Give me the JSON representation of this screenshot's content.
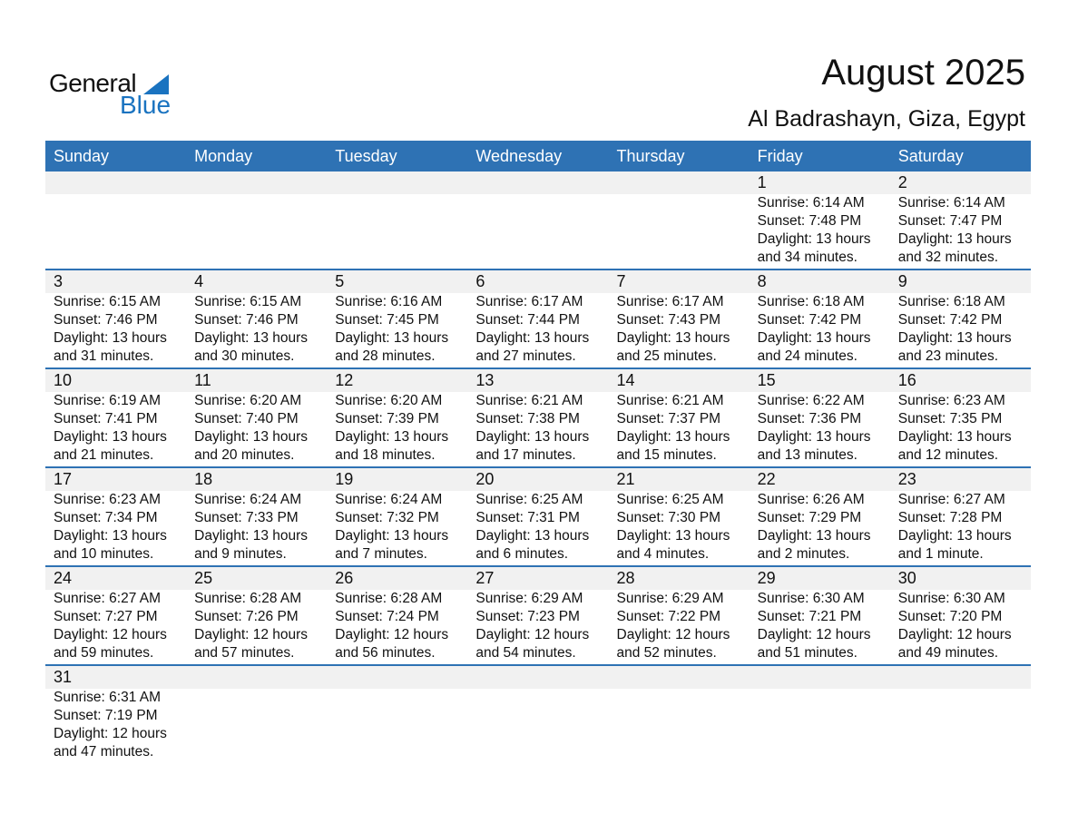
{
  "logo": {
    "line1": "General",
    "line2": "Blue"
  },
  "title": "August 2025",
  "location": "Al Badrashayn, Giza, Egypt",
  "colors": {
    "header": "#2e72b4",
    "band": "#f1f1f1",
    "logo_blue": "#1a73c0"
  },
  "weekdays": [
    "Sunday",
    "Monday",
    "Tuesday",
    "Wednesday",
    "Thursday",
    "Friday",
    "Saturday"
  ],
  "weeks": [
    [
      null,
      null,
      null,
      null,
      null,
      {
        "day": "1",
        "sunrise": "Sunrise: 6:14 AM",
        "sunset": "Sunset: 7:48 PM",
        "daylight": "Daylight: 13 hours",
        "minutes": "and 34 minutes."
      },
      {
        "day": "2",
        "sunrise": "Sunrise: 6:14 AM",
        "sunset": "Sunset: 7:47 PM",
        "daylight": "Daylight: 13 hours",
        "minutes": "and 32 minutes."
      }
    ],
    [
      {
        "day": "3",
        "sunrise": "Sunrise: 6:15 AM",
        "sunset": "Sunset: 7:46 PM",
        "daylight": "Daylight: 13 hours",
        "minutes": "and 31 minutes."
      },
      {
        "day": "4",
        "sunrise": "Sunrise: 6:15 AM",
        "sunset": "Sunset: 7:46 PM",
        "daylight": "Daylight: 13 hours",
        "minutes": "and 30 minutes."
      },
      {
        "day": "5",
        "sunrise": "Sunrise: 6:16 AM",
        "sunset": "Sunset: 7:45 PM",
        "daylight": "Daylight: 13 hours",
        "minutes": "and 28 minutes."
      },
      {
        "day": "6",
        "sunrise": "Sunrise: 6:17 AM",
        "sunset": "Sunset: 7:44 PM",
        "daylight": "Daylight: 13 hours",
        "minutes": "and 27 minutes."
      },
      {
        "day": "7",
        "sunrise": "Sunrise: 6:17 AM",
        "sunset": "Sunset: 7:43 PM",
        "daylight": "Daylight: 13 hours",
        "minutes": "and 25 minutes."
      },
      {
        "day": "8",
        "sunrise": "Sunrise: 6:18 AM",
        "sunset": "Sunset: 7:42 PM",
        "daylight": "Daylight: 13 hours",
        "minutes": "and 24 minutes."
      },
      {
        "day": "9",
        "sunrise": "Sunrise: 6:18 AM",
        "sunset": "Sunset: 7:42 PM",
        "daylight": "Daylight: 13 hours",
        "minutes": "and 23 minutes."
      }
    ],
    [
      {
        "day": "10",
        "sunrise": "Sunrise: 6:19 AM",
        "sunset": "Sunset: 7:41 PM",
        "daylight": "Daylight: 13 hours",
        "minutes": "and 21 minutes."
      },
      {
        "day": "11",
        "sunrise": "Sunrise: 6:20 AM",
        "sunset": "Sunset: 7:40 PM",
        "daylight": "Daylight: 13 hours",
        "minutes": "and 20 minutes."
      },
      {
        "day": "12",
        "sunrise": "Sunrise: 6:20 AM",
        "sunset": "Sunset: 7:39 PM",
        "daylight": "Daylight: 13 hours",
        "minutes": "and 18 minutes."
      },
      {
        "day": "13",
        "sunrise": "Sunrise: 6:21 AM",
        "sunset": "Sunset: 7:38 PM",
        "daylight": "Daylight: 13 hours",
        "minutes": "and 17 minutes."
      },
      {
        "day": "14",
        "sunrise": "Sunrise: 6:21 AM",
        "sunset": "Sunset: 7:37 PM",
        "daylight": "Daylight: 13 hours",
        "minutes": "and 15 minutes."
      },
      {
        "day": "15",
        "sunrise": "Sunrise: 6:22 AM",
        "sunset": "Sunset: 7:36 PM",
        "daylight": "Daylight: 13 hours",
        "minutes": "and 13 minutes."
      },
      {
        "day": "16",
        "sunrise": "Sunrise: 6:23 AM",
        "sunset": "Sunset: 7:35 PM",
        "daylight": "Daylight: 13 hours",
        "minutes": "and 12 minutes."
      }
    ],
    [
      {
        "day": "17",
        "sunrise": "Sunrise: 6:23 AM",
        "sunset": "Sunset: 7:34 PM",
        "daylight": "Daylight: 13 hours",
        "minutes": "and 10 minutes."
      },
      {
        "day": "18",
        "sunrise": "Sunrise: 6:24 AM",
        "sunset": "Sunset: 7:33 PM",
        "daylight": "Daylight: 13 hours",
        "minutes": "and 9 minutes."
      },
      {
        "day": "19",
        "sunrise": "Sunrise: 6:24 AM",
        "sunset": "Sunset: 7:32 PM",
        "daylight": "Daylight: 13 hours",
        "minutes": "and 7 minutes."
      },
      {
        "day": "20",
        "sunrise": "Sunrise: 6:25 AM",
        "sunset": "Sunset: 7:31 PM",
        "daylight": "Daylight: 13 hours",
        "minutes": "and 6 minutes."
      },
      {
        "day": "21",
        "sunrise": "Sunrise: 6:25 AM",
        "sunset": "Sunset: 7:30 PM",
        "daylight": "Daylight: 13 hours",
        "minutes": "and 4 minutes."
      },
      {
        "day": "22",
        "sunrise": "Sunrise: 6:26 AM",
        "sunset": "Sunset: 7:29 PM",
        "daylight": "Daylight: 13 hours",
        "minutes": "and 2 minutes."
      },
      {
        "day": "23",
        "sunrise": "Sunrise: 6:27 AM",
        "sunset": "Sunset: 7:28 PM",
        "daylight": "Daylight: 13 hours",
        "minutes": "and 1 minute."
      }
    ],
    [
      {
        "day": "24",
        "sunrise": "Sunrise: 6:27 AM",
        "sunset": "Sunset: 7:27 PM",
        "daylight": "Daylight: 12 hours",
        "minutes": "and 59 minutes."
      },
      {
        "day": "25",
        "sunrise": "Sunrise: 6:28 AM",
        "sunset": "Sunset: 7:26 PM",
        "daylight": "Daylight: 12 hours",
        "minutes": "and 57 minutes."
      },
      {
        "day": "26",
        "sunrise": "Sunrise: 6:28 AM",
        "sunset": "Sunset: 7:24 PM",
        "daylight": "Daylight: 12 hours",
        "minutes": "and 56 minutes."
      },
      {
        "day": "27",
        "sunrise": "Sunrise: 6:29 AM",
        "sunset": "Sunset: 7:23 PM",
        "daylight": "Daylight: 12 hours",
        "minutes": "and 54 minutes."
      },
      {
        "day": "28",
        "sunrise": "Sunrise: 6:29 AM",
        "sunset": "Sunset: 7:22 PM",
        "daylight": "Daylight: 12 hours",
        "minutes": "and 52 minutes."
      },
      {
        "day": "29",
        "sunrise": "Sunrise: 6:30 AM",
        "sunset": "Sunset: 7:21 PM",
        "daylight": "Daylight: 12 hours",
        "minutes": "and 51 minutes."
      },
      {
        "day": "30",
        "sunrise": "Sunrise: 6:30 AM",
        "sunset": "Sunset: 7:20 PM",
        "daylight": "Daylight: 12 hours",
        "minutes": "and 49 minutes."
      }
    ],
    [
      {
        "day": "31",
        "sunrise": "Sunrise: 6:31 AM",
        "sunset": "Sunset: 7:19 PM",
        "daylight": "Daylight: 12 hours",
        "minutes": "and 47 minutes."
      },
      null,
      null,
      null,
      null,
      null,
      null
    ]
  ]
}
